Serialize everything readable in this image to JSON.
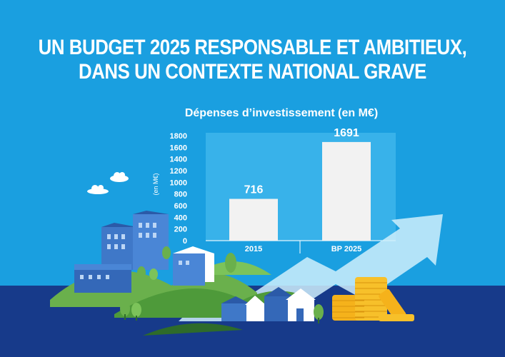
{
  "header": {
    "title_line1": "UN BUDGET 2025 RESPONSABLE ET AMBITIEUX,",
    "title_line2": "DANS UN CONTEXTE NATIONAL GRAVE"
  },
  "chart_data": {
    "type": "bar",
    "title": "Dépenses d’investissement (en M€)",
    "ylabel": "(en M€)",
    "categories": [
      "2015",
      "BP 2025"
    ],
    "values": [
      716,
      1691
    ],
    "data_labels": [
      "716",
      "1691"
    ],
    "ylim": [
      0,
      1800
    ],
    "yticks": [
      0,
      200,
      400,
      600,
      800,
      1000,
      1200,
      1400,
      1600,
      1800
    ],
    "grid": false,
    "legend": "none"
  },
  "colors": {
    "background": "#1a9fe0",
    "bottom_band": "#173a8a",
    "bar": "#f2f2f2",
    "chart_panel": "#38b2ea",
    "hills": "#6ab04c",
    "coins": "#f5b21b",
    "arrow": "#a9dcf7"
  },
  "illustration": {
    "icons": [
      "cloud-icon",
      "buildings-icon",
      "houses-icon",
      "trees-icon",
      "coins-icon",
      "rising-arrow-icon"
    ]
  }
}
